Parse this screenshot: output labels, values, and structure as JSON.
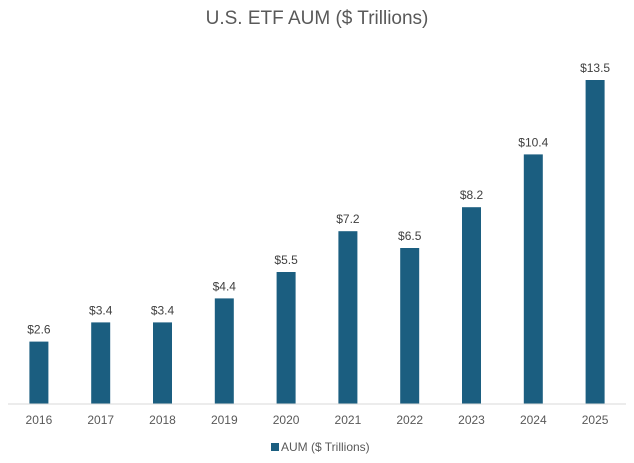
{
  "chart_data": {
    "type": "bar",
    "title": "U.S. ETF AUM ($ Trillions)",
    "categories": [
      "2016",
      "2017",
      "2018",
      "2019",
      "2020",
      "2021",
      "2022",
      "2023",
      "2024",
      "2025"
    ],
    "series": [
      {
        "name": "AUM ($ Trillions)",
        "values": [
          2.6,
          3.4,
          3.4,
          4.4,
          5.5,
          7.2,
          6.5,
          8.2,
          10.4,
          13.5
        ],
        "labels": [
          "$2.6",
          "$3.4",
          "$3.4",
          "$4.4",
          "$5.5",
          "$7.2",
          "$6.5",
          "$8.2",
          "$10.4",
          "$13.5"
        ]
      }
    ],
    "xlabel": "",
    "ylabel": "",
    "ylim": [
      0,
      13.5
    ],
    "grid": false,
    "legend": "bottom",
    "colors": {
      "bar": "#1b5e80",
      "text": "#595959",
      "axis": "#d9d9d9"
    }
  }
}
